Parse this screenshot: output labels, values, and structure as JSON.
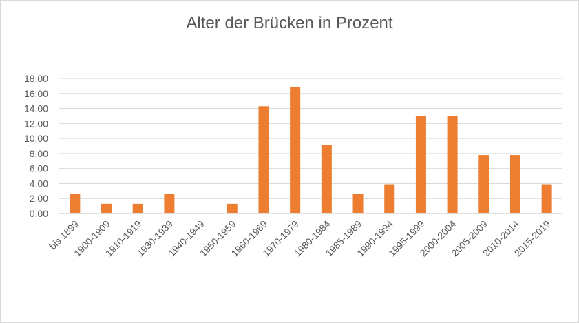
{
  "chart_data": {
    "type": "bar",
    "title": "Alter der Brücken in Prozent",
    "xlabel": "",
    "ylabel": "",
    "categories": [
      "bis 1899",
      "1900-1909",
      "1910-1919",
      "1930-1939",
      "1940-1949",
      "1950-1959",
      "1960-1969",
      "1970-1979",
      "1980-1984",
      "1985-1989",
      "1990-1994",
      "1995-1999",
      "2000-2004",
      "2005-2009",
      "2010-2014",
      "2015-2019"
    ],
    "values": [
      2.6,
      1.3,
      1.3,
      2.6,
      0,
      1.3,
      14.3,
      16.9,
      9.1,
      2.6,
      3.9,
      13.0,
      13.0,
      7.8,
      7.8,
      3.9
    ],
    "ylim": [
      0,
      18
    ],
    "yticks": [
      "0,00",
      "2,00",
      "4,00",
      "6,00",
      "8,00",
      "10,00",
      "12,00",
      "14,00",
      "16,00",
      "18,00"
    ],
    "bar_color": "#ED7D31",
    "grid": true,
    "legend": "none"
  }
}
